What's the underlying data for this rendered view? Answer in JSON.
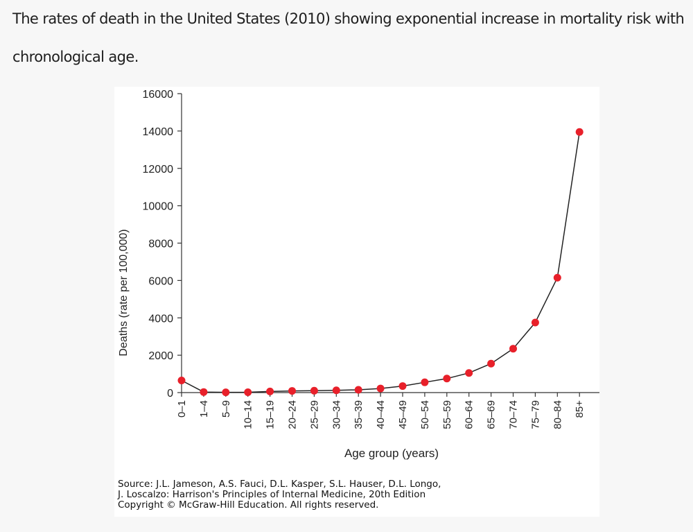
{
  "caption": "The rates of death in the United States (2010) showing exponential increase in mortality risk with chronological age.",
  "source_lines": [
    "Source: J.L. Jameson, A.S. Fauci, D.L. Kasper, S.L. Hauser, D.L. Longo,",
    "J. Loscalzo: Harrison's Principles of Internal Medicine, 20th Edition",
    "Copyright © McGraw-Hill Education. All rights reserved."
  ],
  "colors": {
    "marker": "#e8202a",
    "line": "#222222",
    "axis": "#333333"
  },
  "chart_data": {
    "type": "line",
    "title": "",
    "xlabel": "Age group (years)",
    "ylabel": "Deaths (rate per 100,000)",
    "ylim": [
      0,
      16000
    ],
    "yticks": [
      0,
      2000,
      4000,
      6000,
      8000,
      10000,
      12000,
      14000,
      16000
    ],
    "grid": false,
    "categories": [
      "0–1",
      "1–4",
      "5–9",
      "10–14",
      "15–19",
      "20–24",
      "25–29",
      "30–34",
      "35–39",
      "40–44",
      "45–49",
      "50–54",
      "55–59",
      "60–64",
      "65–69",
      "70–74",
      "75–79",
      "80–84",
      "85+"
    ],
    "values": [
      650,
      30,
      15,
      20,
      60,
      90,
      100,
      120,
      150,
      220,
      350,
      550,
      750,
      1050,
      1550,
      2350,
      3750,
      6150,
      13950
    ]
  }
}
